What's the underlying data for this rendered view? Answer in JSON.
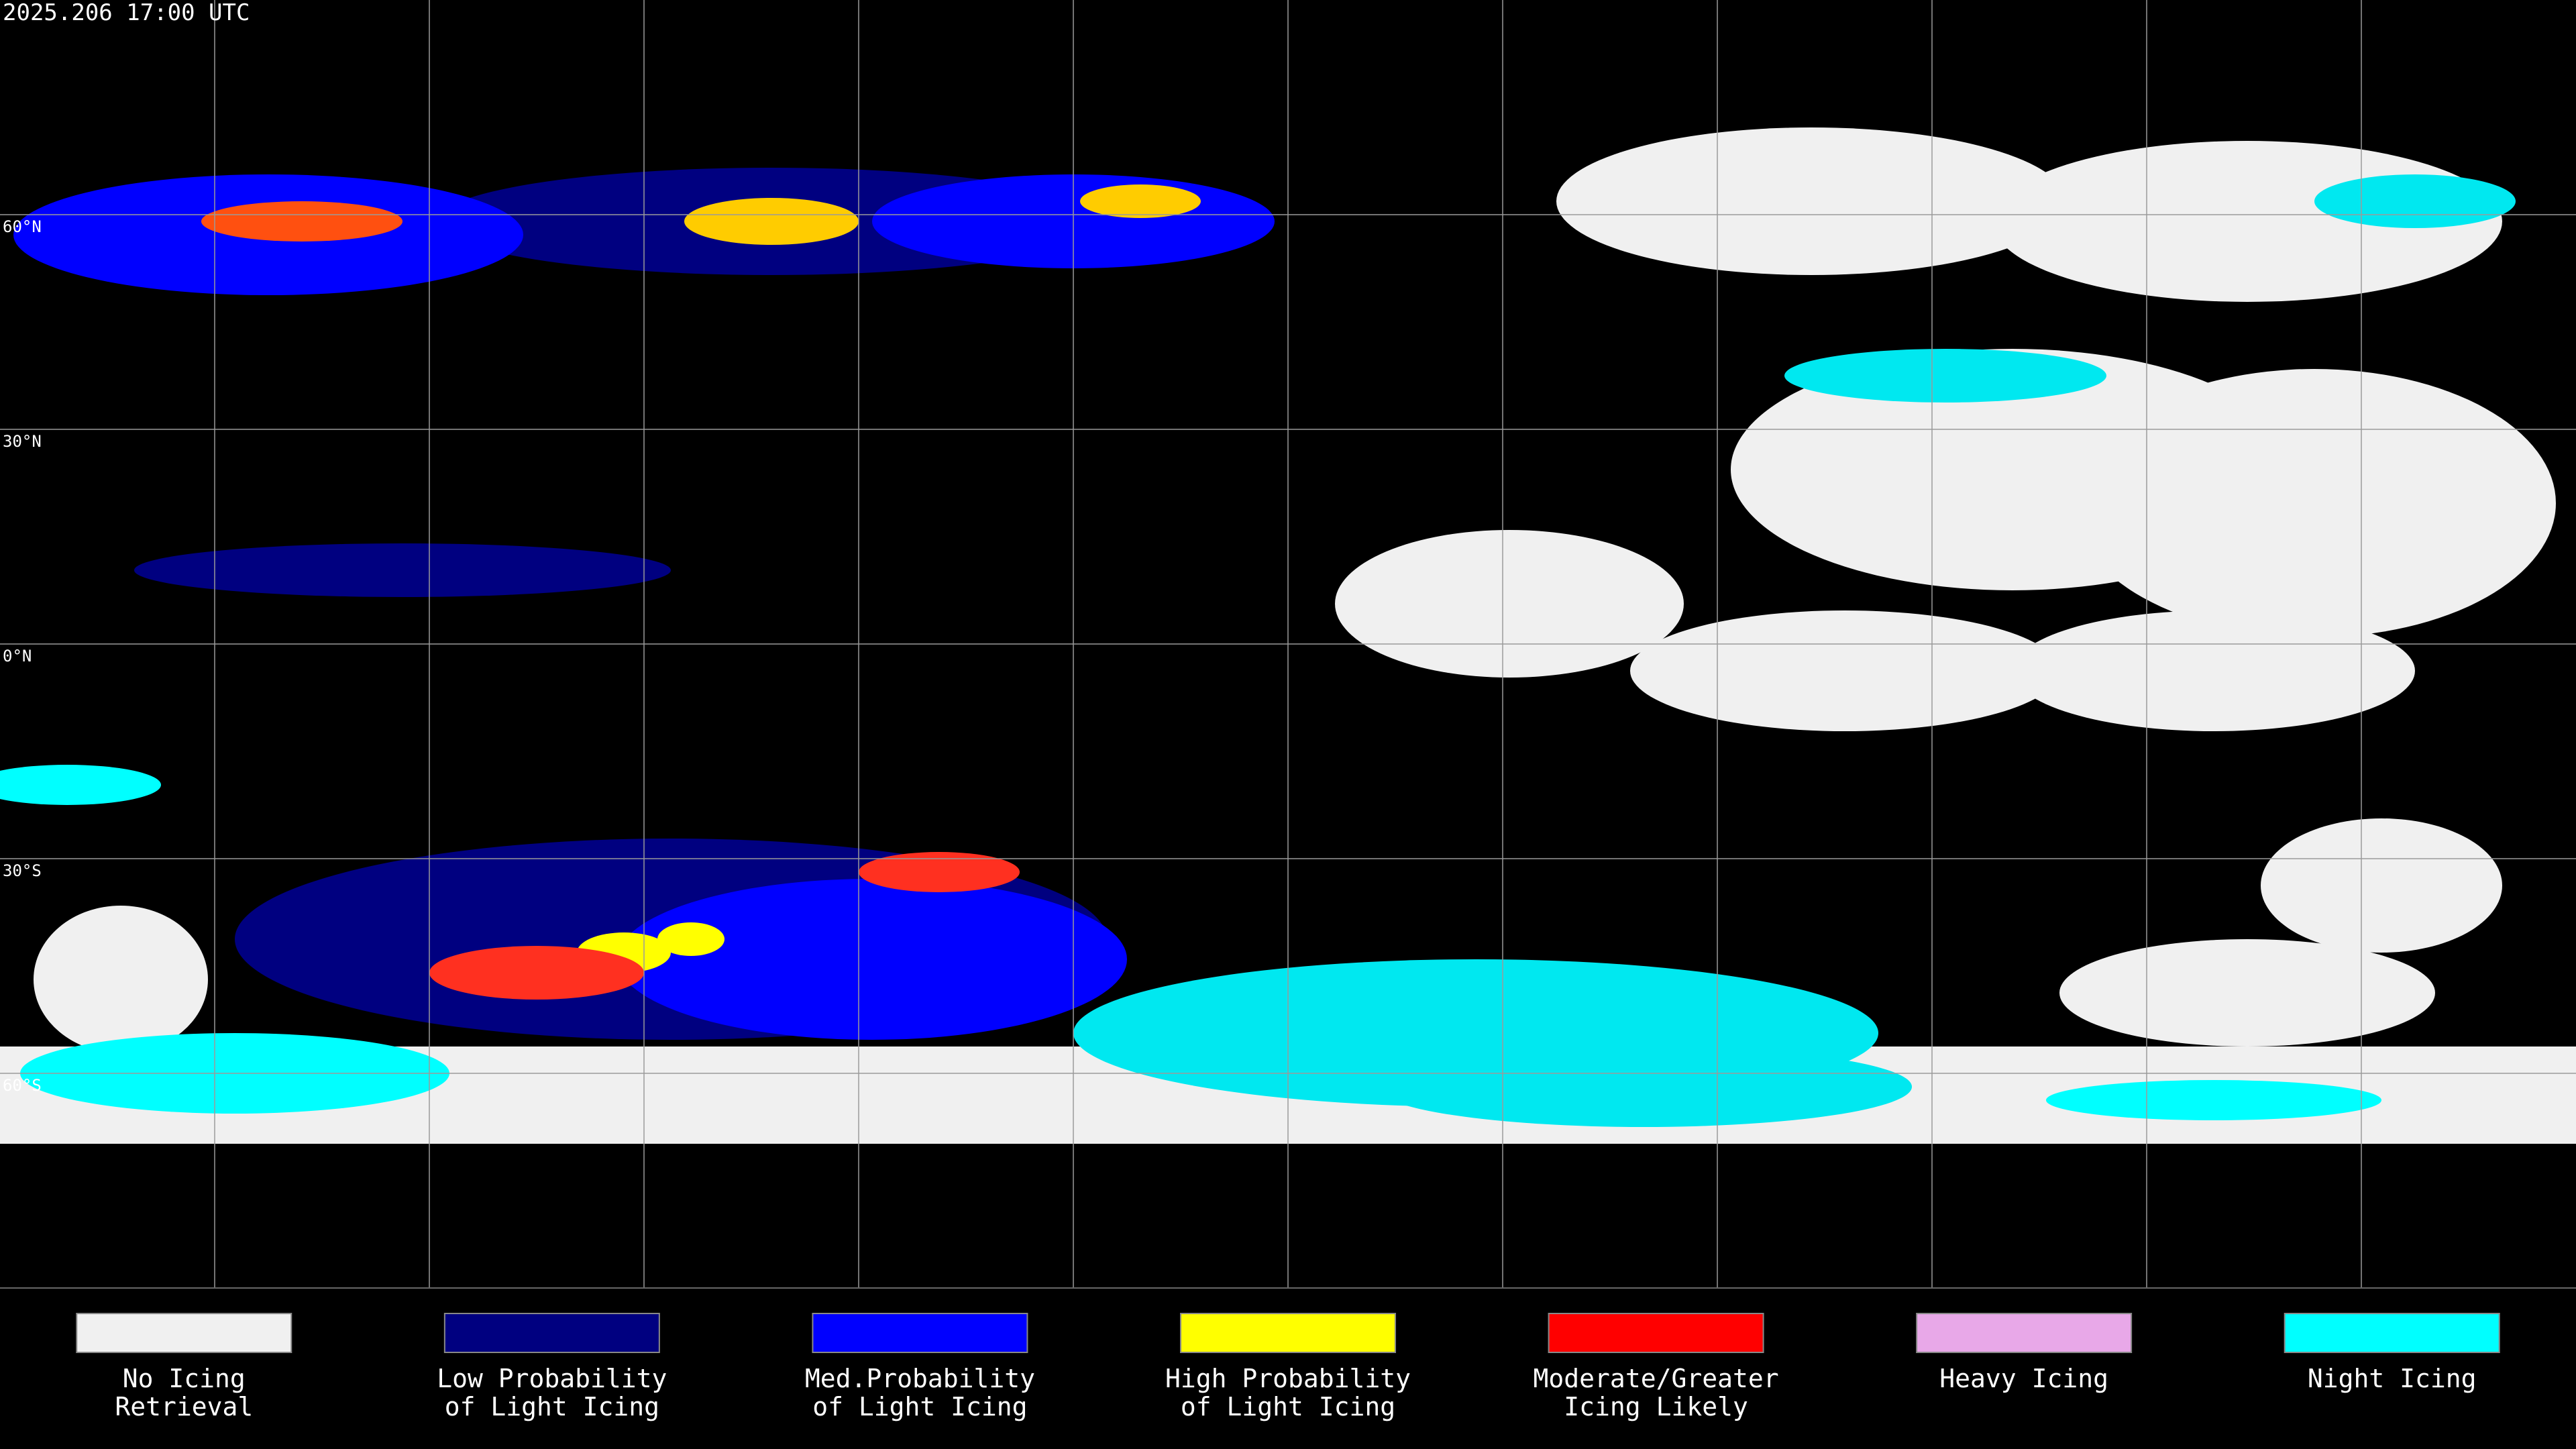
{
  "header": {
    "timestamp": "2025.206 17:00 UTC"
  },
  "map": {
    "latitude_labels": [
      "60°N",
      "30°N",
      "0°N",
      "30°S",
      "60°S"
    ]
  },
  "legend": {
    "items": [
      {
        "lines": [
          "No Icing",
          "Retrieval"
        ],
        "color": "#f0f0f0"
      },
      {
        "lines": [
          "Low Probability",
          "of Light Icing"
        ],
        "color": "#000080"
      },
      {
        "lines": [
          "Med.Probability",
          "of Light Icing"
        ],
        "color": "#0000ff"
      },
      {
        "lines": [
          "High Probability",
          "of Light Icing"
        ],
        "color": "#ffff00"
      },
      {
        "lines": [
          "Moderate/Greater",
          "Icing Likely"
        ],
        "color": "#ff0000"
      },
      {
        "lines": [
          "Heavy Icing"
        ],
        "color": "#e8a8e8"
      },
      {
        "lines": [
          "Night Icing"
        ],
        "color": "#00ffff"
      }
    ]
  }
}
